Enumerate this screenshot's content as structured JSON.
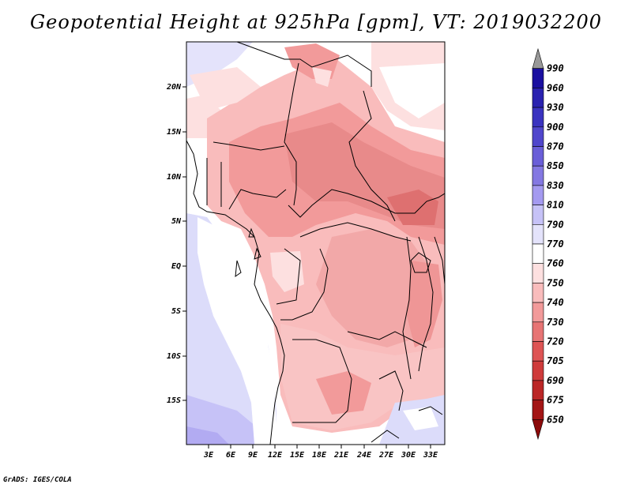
{
  "title": "Geopotential Height at 925hPa [gpm], VT: 2019032200",
  "credit": "GrADS: IGES/COLA",
  "map": {
    "lat_ticks": [
      "20N",
      "15N",
      "10N",
      "5N",
      "EQ",
      "5S",
      "10S",
      "15S"
    ],
    "lon_ticks": [
      "3E",
      "6E",
      "9E",
      "12E",
      "15E",
      "18E",
      "21E",
      "24E",
      "27E",
      "30E",
      "33E"
    ]
  },
  "colorbar": {
    "levels": [
      "990",
      "960",
      "930",
      "900",
      "870",
      "850",
      "830",
      "810",
      "790",
      "770",
      "760",
      "750",
      "740",
      "730",
      "720",
      "705",
      "690",
      "675",
      "650"
    ],
    "colors": [
      "#00008b",
      "#1a0fa0",
      "#2a22b0",
      "#3a33c0",
      "#5046cc",
      "#6a5ed8",
      "#8478e2",
      "#a49af0",
      "#c6c2f7",
      "#e4e3fb",
      "#ffffff",
      "#fde0e0",
      "#f9bcbc",
      "#f29a9a",
      "#e77474",
      "#de5454",
      "#cf3b3b",
      "#bb2727",
      "#a31515",
      "#8c0a0a"
    ]
  }
}
